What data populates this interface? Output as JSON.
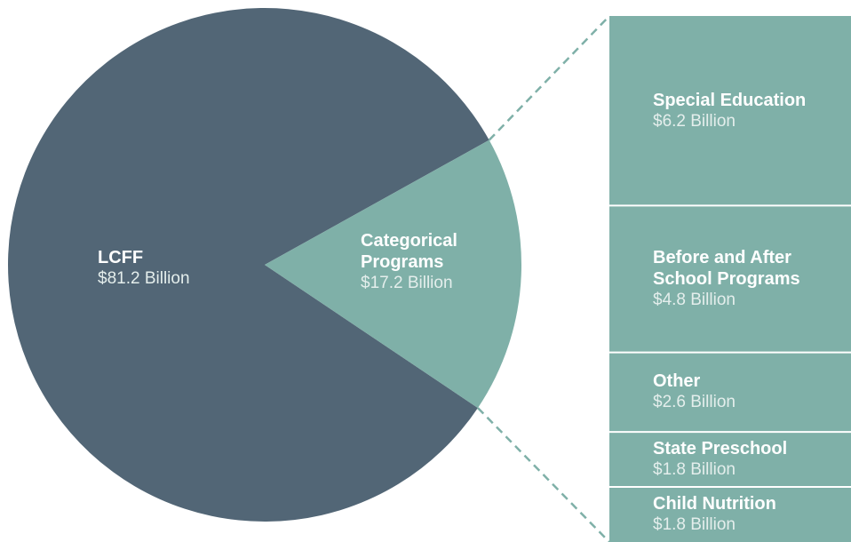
{
  "chart_data": {
    "type": "pie",
    "categories": [
      "LCFF",
      "Categorical Programs"
    ],
    "values": [
      81.2,
      17.2
    ],
    "value_labels": [
      "$81.2 Billion",
      "$17.2 Billion"
    ],
    "colors": [
      "#526676",
      "#7fb0a8"
    ],
    "breakdown": {
      "type": "bar",
      "categories": [
        "Special Education",
        "Before and After School Programs",
        "Other",
        "State Preschool",
        "Child Nutrition"
      ],
      "values": [
        6.2,
        4.8,
        2.6,
        1.8,
        1.8
      ],
      "value_labels": [
        "$6.2 Billion",
        "$4.8 Billion",
        "$2.6 Billion",
        "$1.8 Billion",
        "$1.8 Billion"
      ],
      "color": "#7fb0a8"
    }
  }
}
